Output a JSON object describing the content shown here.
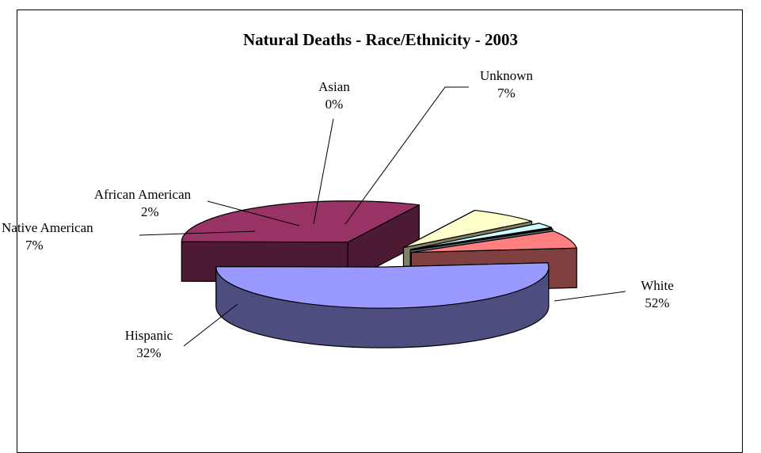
{
  "chart_data": {
    "type": "pie",
    "title": "Natural Deaths - Race/Ethnicity - 2003",
    "three_d": true,
    "exploded": true,
    "slices": [
      {
        "label": "White",
        "value": 52,
        "percent_label": "52%",
        "color": "#9999ff",
        "side_color": "#4d4d80"
      },
      {
        "label": "Hispanic",
        "value": 32,
        "percent_label": "32%",
        "color": "#993366",
        "side_color": "#4d1a33"
      },
      {
        "label": "Native American",
        "value": 7,
        "percent_label": "7%",
        "color": "#ffffcc",
        "side_color": "#808066"
      },
      {
        "label": "African American",
        "value": 2,
        "percent_label": "2%",
        "color": "#ccffff",
        "side_color": "#668080"
      },
      {
        "label": "Asian",
        "value": 0,
        "percent_label": "0%",
        "color": "#cfe8ff",
        "side_color": "#607080"
      },
      {
        "label": "Unknown",
        "value": 7,
        "percent_label": "7%",
        "color": "#ff8080",
        "side_color": "#804040"
      }
    ]
  }
}
